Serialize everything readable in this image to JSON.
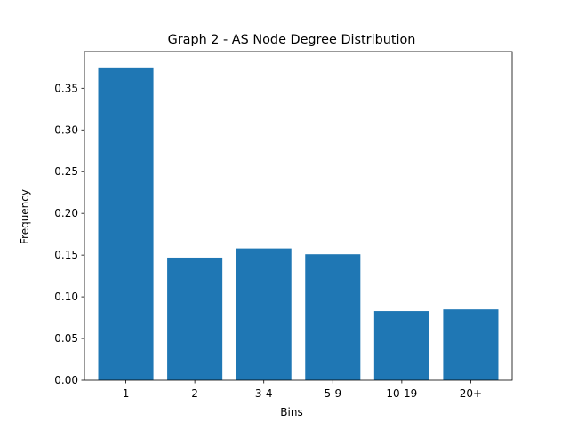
{
  "chart_data": {
    "type": "bar",
    "title": "Graph 2 - AS Node Degree Distribution",
    "xlabel": "Bins",
    "ylabel": "Frequency",
    "categories": [
      "1",
      "2",
      "3-4",
      "5-9",
      "10-19",
      "20+"
    ],
    "values": [
      0.375,
      0.147,
      0.158,
      0.151,
      0.083,
      0.085
    ],
    "ylim": [
      0,
      0.394
    ],
    "yticks": [
      "0.00",
      "0.05",
      "0.10",
      "0.15",
      "0.20",
      "0.25",
      "0.30",
      "0.35"
    ],
    "grid": false,
    "bar_color": "#1f77b4"
  }
}
